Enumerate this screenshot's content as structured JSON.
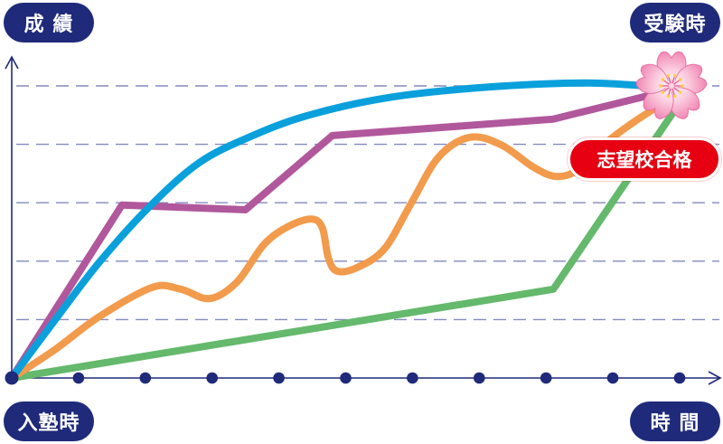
{
  "goal_icon": "cherry-blossom-icon",
  "colors": {
    "navy": "#1f2a7b",
    "badge_red": "#e60012",
    "gridline": "#8489bf",
    "blossom_pink": "#f28ab6"
  },
  "chart_data": {
    "type": "line",
    "ylabel": "成 績",
    "xlabel": "時 間",
    "x_start_label": "入塾時",
    "x_end_label": "受験時",
    "annotation": "志望校合格",
    "xlim": [
      0,
      10.6
    ],
    "ylim": [
      0,
      5.5
    ],
    "x_tick_positions": [
      0,
      1,
      2,
      3,
      4,
      5,
      6,
      7,
      8,
      9,
      10
    ],
    "y_gridlines": [
      1,
      2,
      3,
      4,
      5
    ],
    "grid": "horizontal-dashed",
    "legend": "none",
    "series": [
      {
        "color": "#64b96c",
        "smooth": false,
        "points": [
          [
            0,
            0
          ],
          [
            8.11,
            1.52
          ],
          [
            9.9,
            4.54
          ]
        ]
      },
      {
        "color": "#f29b4c",
        "smooth": true,
        "points": [
          [
            0,
            0
          ],
          [
            0.64,
            0.48
          ],
          [
            1.31,
            1.05
          ],
          [
            2.1,
            1.55
          ],
          [
            2.53,
            1.52
          ],
          [
            2.96,
            1.36
          ],
          [
            3.37,
            1.64
          ],
          [
            3.78,
            2.29
          ],
          [
            4.15,
            2.6
          ],
          [
            4.49,
            2.72
          ],
          [
            4.65,
            2.57
          ],
          [
            4.74,
            2.06
          ],
          [
            4.87,
            1.83
          ],
          [
            5.17,
            1.89
          ],
          [
            5.58,
            2.21
          ],
          [
            5.98,
            2.99
          ],
          [
            6.39,
            3.78
          ],
          [
            6.86,
            4.12
          ],
          [
            7.33,
            3.99
          ],
          [
            7.81,
            3.61
          ],
          [
            8.15,
            3.45
          ],
          [
            8.48,
            3.56
          ],
          [
            8.86,
            3.99
          ],
          [
            9.3,
            4.37
          ],
          [
            9.84,
            4.77
          ]
        ]
      },
      {
        "color": "#b1579c",
        "smooth": false,
        "points": [
          [
            0,
            0
          ],
          [
            1.65,
            2.96
          ],
          [
            3.5,
            2.88
          ],
          [
            4.8,
            4.15
          ],
          [
            8.1,
            4.43
          ],
          [
            9.84,
            4.92
          ]
        ]
      },
      {
        "color": "#0aa0dc",
        "smooth": true,
        "points": [
          [
            0,
            0
          ],
          [
            0.64,
            0.98
          ],
          [
            1.31,
            1.98
          ],
          [
            2.06,
            2.93
          ],
          [
            2.8,
            3.68
          ],
          [
            3.55,
            4.12
          ],
          [
            4.42,
            4.49
          ],
          [
            5.64,
            4.8
          ],
          [
            7.13,
            4.98
          ],
          [
            8.62,
            5.05
          ],
          [
            9.84,
            4.97
          ]
        ]
      }
    ]
  }
}
